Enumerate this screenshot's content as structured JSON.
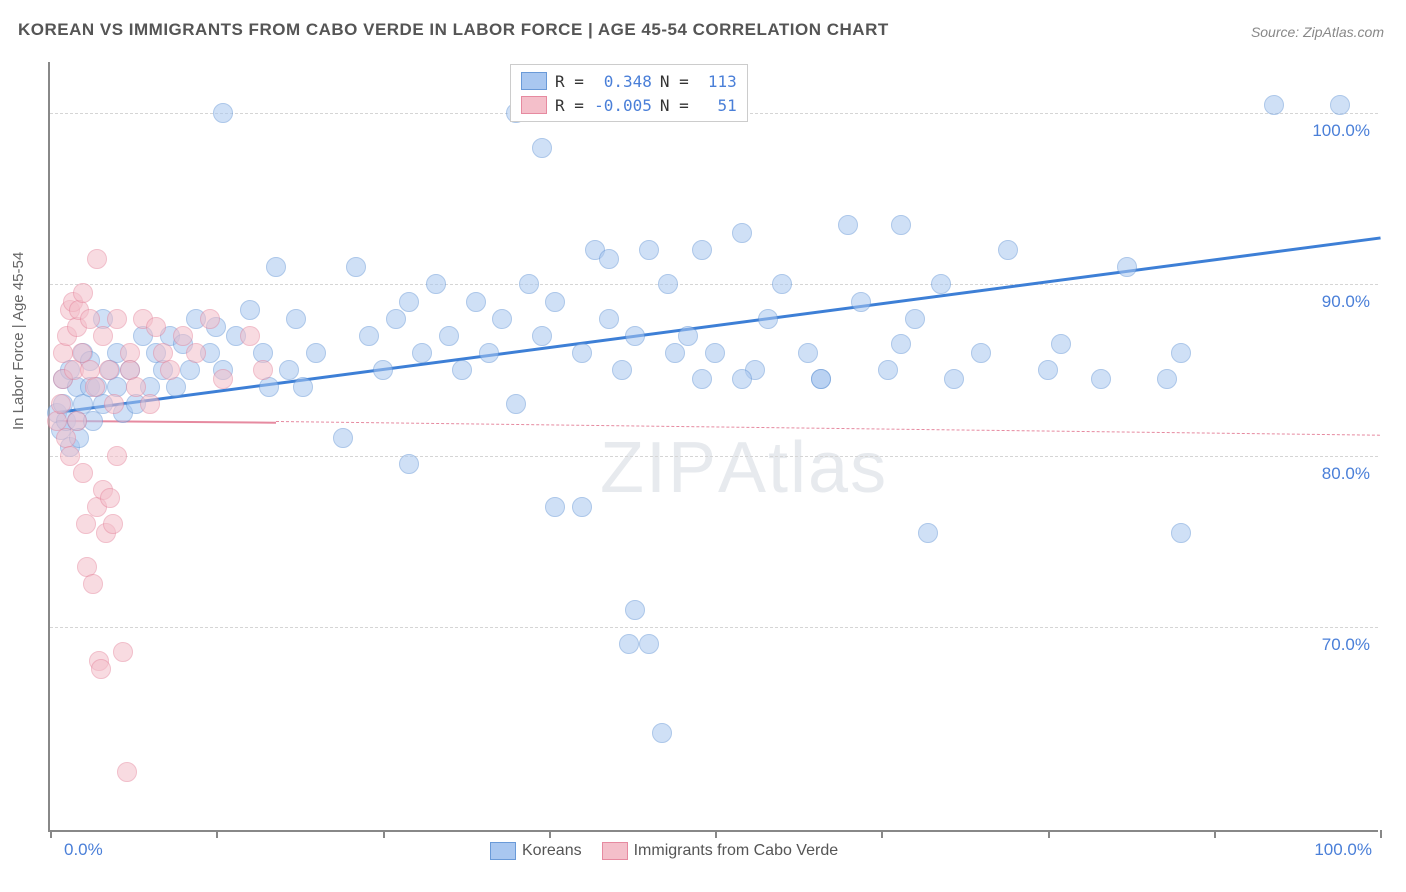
{
  "title": "KOREAN VS IMMIGRANTS FROM CABO VERDE IN LABOR FORCE | AGE 45-54 CORRELATION CHART",
  "source": "Source: ZipAtlas.com",
  "y_axis_label": "In Labor Force | Age 45-54",
  "watermark_a": "ZIP",
  "watermark_b": "Atlas",
  "chart": {
    "type": "scatter",
    "xlim": [
      0,
      100
    ],
    "ylim": [
      58,
      103
    ],
    "background_color": "#ffffff",
    "grid_color": "#d5d5d5",
    "grid_dash": "3,4",
    "axis_color": "#888888",
    "x_ticks": [
      0,
      12.5,
      25,
      37.5,
      50,
      62.5,
      75,
      87.5,
      100
    ],
    "x_tick_labels": {
      "0": "0.0%",
      "100": "100.0%"
    },
    "y_ticks": [
      70,
      80,
      90,
      100
    ],
    "y_tick_labels": {
      "70": "70.0%",
      "80": "80.0%",
      "90": "90.0%",
      "100": "100.0%"
    },
    "tick_label_color": "#4a7fd8",
    "tick_label_fontsize": 17,
    "marker_radius": 10,
    "marker_opacity": 0.55,
    "series": [
      {
        "id": "koreans",
        "label": "Koreans",
        "fill": "#a9c7f0",
        "stroke": "#6a9ad8",
        "trend": {
          "color": "#3d7fd6",
          "width": 3,
          "x1": 0.5,
          "y1": 82.6,
          "x2": 100,
          "y2": 92.8,
          "dash_ext_from": 100
        },
        "r_label": "R = ",
        "r_value": "0.348",
        "n_label": "N = ",
        "n_value": "113",
        "points": [
          [
            0.5,
            82.5
          ],
          [
            0.8,
            81.5
          ],
          [
            1,
            83
          ],
          [
            1,
            84.5
          ],
          [
            1.2,
            82
          ],
          [
            1.5,
            80.5
          ],
          [
            1.5,
            85
          ],
          [
            2,
            82
          ],
          [
            2,
            84
          ],
          [
            2.2,
            81
          ],
          [
            2.5,
            83
          ],
          [
            2.5,
            86
          ],
          [
            3,
            84
          ],
          [
            3,
            85.5
          ],
          [
            3.2,
            82
          ],
          [
            3.5,
            84
          ],
          [
            4,
            83
          ],
          [
            4,
            88
          ],
          [
            4.5,
            85
          ],
          [
            5,
            84
          ],
          [
            5,
            86
          ],
          [
            5.5,
            82.5
          ],
          [
            6,
            85
          ],
          [
            6.5,
            83
          ],
          [
            7,
            87
          ],
          [
            7.5,
            84
          ],
          [
            8,
            86
          ],
          [
            8.5,
            85
          ],
          [
            9,
            87
          ],
          [
            9.5,
            84
          ],
          [
            10,
            86.5
          ],
          [
            10.5,
            85
          ],
          [
            11,
            88
          ],
          [
            12,
            86
          ],
          [
            12.5,
            87.5
          ],
          [
            13,
            85
          ],
          [
            13,
            100
          ],
          [
            14,
            87
          ],
          [
            15,
            88.5
          ],
          [
            16,
            86
          ],
          [
            16.5,
            84
          ],
          [
            17,
            91
          ],
          [
            18,
            85
          ],
          [
            18.5,
            88
          ],
          [
            19,
            84
          ],
          [
            20,
            86
          ],
          [
            22,
            81
          ],
          [
            23,
            91
          ],
          [
            24,
            87
          ],
          [
            25,
            85
          ],
          [
            26,
            88
          ],
          [
            27,
            89
          ],
          [
            27,
            79.5
          ],
          [
            28,
            86
          ],
          [
            29,
            90
          ],
          [
            30,
            87
          ],
          [
            31,
            85
          ],
          [
            32,
            89
          ],
          [
            33,
            86
          ],
          [
            34,
            88
          ],
          [
            35,
            83
          ],
          [
            36,
            90
          ],
          [
            37,
            87
          ],
          [
            35,
            100
          ],
          [
            37,
            98
          ],
          [
            38,
            89
          ],
          [
            38,
            77
          ],
          [
            40,
            86
          ],
          [
            40,
            77
          ],
          [
            41,
            92
          ],
          [
            42,
            88
          ],
          [
            42,
            91.5
          ],
          [
            43,
            85
          ],
          [
            43.5,
            69
          ],
          [
            44,
            87
          ],
          [
            44,
            71
          ],
          [
            45,
            92
          ],
          [
            45,
            69
          ],
          [
            46,
            63.8
          ],
          [
            46.5,
            90
          ],
          [
            47,
            86
          ],
          [
            48,
            87
          ],
          [
            49,
            92
          ],
          [
            50,
            86
          ],
          [
            52,
            93
          ],
          [
            53,
            85
          ],
          [
            54,
            88
          ],
          [
            55,
            90
          ],
          [
            57,
            86
          ],
          [
            58,
            84.5
          ],
          [
            60,
            93.5
          ],
          [
            61,
            89
          ],
          [
            63,
            85
          ],
          [
            64,
            86.5
          ],
          [
            64,
            93.5
          ],
          [
            65,
            88
          ],
          [
            67,
            90
          ],
          [
            68,
            84.5
          ],
          [
            70,
            86
          ],
          [
            72,
            92
          ],
          [
            75,
            85
          ],
          [
            76,
            86.5
          ],
          [
            79,
            84.5
          ],
          [
            81,
            91
          ],
          [
            84,
            84.5
          ],
          [
            85,
            86
          ],
          [
            85,
            75.5
          ],
          [
            66,
            75.5
          ],
          [
            92,
            100.5
          ],
          [
            97,
            100.5
          ],
          [
            58,
            84.5
          ],
          [
            49,
            84.5
          ],
          [
            52,
            84.5
          ]
        ]
      },
      {
        "id": "cabo_verde",
        "label": "Immigrants from Cabo Verde",
        "fill": "#f4bfca",
        "stroke": "#e68aa0",
        "trend": {
          "color": "#e68aa0",
          "width": 2.5,
          "x1": 0.5,
          "y1": 82.1,
          "x2": 17,
          "y2": 82.0,
          "dash_ext_to": 100,
          "dash_ext_y": 81.2
        },
        "r_label": "R = ",
        "r_value": "-0.005",
        "n_label": "N = ",
        "n_value": "51",
        "points": [
          [
            0.5,
            82
          ],
          [
            0.8,
            83
          ],
          [
            1,
            84.5
          ],
          [
            1,
            86
          ],
          [
            1.2,
            81
          ],
          [
            1.3,
            87
          ],
          [
            1.5,
            88.5
          ],
          [
            1.5,
            80
          ],
          [
            1.7,
            89
          ],
          [
            1.8,
            85
          ],
          [
            2,
            87.5
          ],
          [
            2,
            82
          ],
          [
            2.2,
            88.5
          ],
          [
            2.4,
            86
          ],
          [
            2.5,
            89.5
          ],
          [
            2.5,
            79
          ],
          [
            2.7,
            76
          ],
          [
            2.8,
            73.5
          ],
          [
            3,
            88
          ],
          [
            3,
            85
          ],
          [
            3.2,
            72.5
          ],
          [
            3.4,
            84
          ],
          [
            3.5,
            91.5
          ],
          [
            3.5,
            77
          ],
          [
            3.7,
            68
          ],
          [
            3.8,
            67.5
          ],
          [
            4,
            87
          ],
          [
            4,
            78
          ],
          [
            4.2,
            75.5
          ],
          [
            4.4,
            85
          ],
          [
            4.5,
            77.5
          ],
          [
            4.7,
            76
          ],
          [
            4.8,
            83
          ],
          [
            5,
            88
          ],
          [
            5,
            80
          ],
          [
            5.5,
            68.5
          ],
          [
            5.8,
            61.5
          ],
          [
            6,
            86
          ],
          [
            6,
            85
          ],
          [
            6.5,
            84
          ],
          [
            7,
            88
          ],
          [
            7.5,
            83
          ],
          [
            8,
            87.5
          ],
          [
            8.5,
            86
          ],
          [
            9,
            85
          ],
          [
            10,
            87
          ],
          [
            11,
            86
          ],
          [
            12,
            88
          ],
          [
            13,
            84.5
          ],
          [
            15,
            87
          ],
          [
            16,
            85
          ]
        ]
      }
    ]
  },
  "bottom_legend": {
    "items": [
      {
        "label": "Koreans",
        "fill": "#a9c7f0",
        "stroke": "#6a9ad8"
      },
      {
        "label": "Immigrants from Cabo Verde",
        "fill": "#f4bfca",
        "stroke": "#e68aa0"
      }
    ]
  }
}
